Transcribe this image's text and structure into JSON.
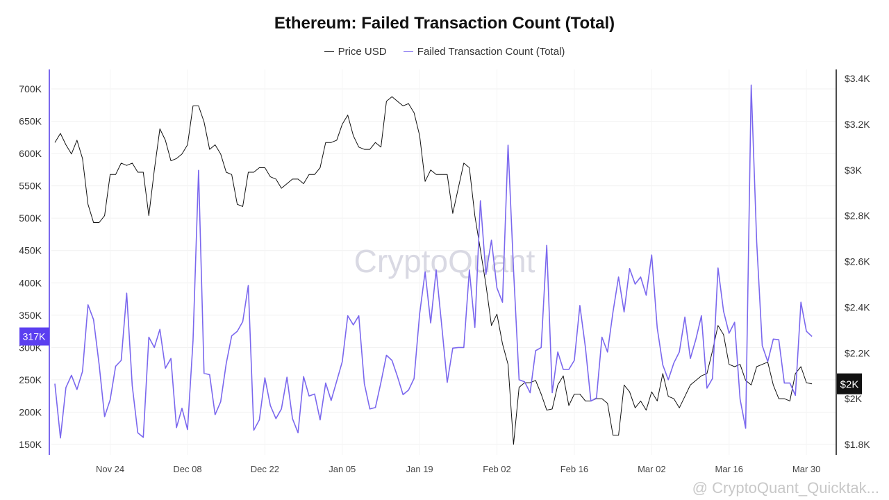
{
  "chart_data": {
    "type": "line",
    "title": "Ethereum: Failed Transaction Count (Total)",
    "legend": {
      "placement": "top-center"
    },
    "watermark": "CryptoQuant",
    "footer": "@ CryptoQuant_Quicktak...",
    "x_ticks": [
      {
        "label": "Nov 24",
        "day": 10
      },
      {
        "label": "Dec 08",
        "day": 24
      },
      {
        "label": "Dec 22",
        "day": 38
      },
      {
        "label": "Jan 05",
        "day": 52
      },
      {
        "label": "Jan 19",
        "day": 66
      },
      {
        "label": "Feb 02",
        "day": 80
      },
      {
        "label": "Feb 16",
        "day": 94
      },
      {
        "label": "Mar 02",
        "day": 108
      },
      {
        "label": "Mar 16",
        "day": 122
      },
      {
        "label": "Mar 30",
        "day": 136
      }
    ],
    "x_range": [
      0,
      139
    ],
    "y_left": {
      "range": [
        135000,
        735000
      ],
      "ticks": [
        {
          "value": 150000,
          "label": "150K"
        },
        {
          "value": 200000,
          "label": "200K"
        },
        {
          "value": 250000,
          "label": "250K"
        },
        {
          "value": 300000,
          "label": "300K"
        },
        {
          "value": 350000,
          "label": "350K"
        },
        {
          "value": 400000,
          "label": "400K"
        },
        {
          "value": 450000,
          "label": "450K"
        },
        {
          "value": 500000,
          "label": "500K"
        },
        {
          "value": 550000,
          "label": "550K"
        },
        {
          "value": 600000,
          "label": "600K"
        },
        {
          "value": 650000,
          "label": "650K"
        },
        {
          "value": 700000,
          "label": "700K"
        }
      ],
      "current_label": "317K",
      "current_value": 317000
    },
    "y_right": {
      "range": [
        1750,
        3450
      ],
      "ticks": [
        {
          "value": 1800,
          "label": "$1.8K"
        },
        {
          "value": 2000,
          "label": "$2K"
        },
        {
          "value": 2200,
          "label": "$2.2K"
        },
        {
          "value": 2400,
          "label": "$2.4K"
        },
        {
          "value": 2600,
          "label": "$2.6K"
        },
        {
          "value": 2800,
          "label": "$2.8K"
        },
        {
          "value": 3000,
          "label": "$3K"
        },
        {
          "value": 3200,
          "label": "$3.2K"
        },
        {
          "value": 3400,
          "label": "$3.4K"
        }
      ],
      "current_label": "$2K",
      "current_value": 2065
    },
    "grid": true,
    "series": [
      {
        "name": "Price USD",
        "axis": "right",
        "color": "#111111",
        "values": [
          3120,
          3160,
          3110,
          3070,
          3130,
          3050,
          2850,
          2770,
          2770,
          2800,
          2980,
          2980,
          3030,
          3020,
          3030,
          2990,
          2990,
          2800,
          3000,
          3180,
          3130,
          3040,
          3050,
          3070,
          3110,
          3280,
          3280,
          3210,
          3090,
          3110,
          3070,
          2990,
          2980,
          2850,
          2840,
          2990,
          2990,
          3010,
          3010,
          2970,
          2960,
          2920,
          2940,
          2960,
          2960,
          2940,
          2980,
          2980,
          3010,
          3120,
          3120,
          3130,
          3200,
          3240,
          3150,
          3100,
          3090,
          3090,
          3120,
          3100,
          3300,
          3320,
          3300,
          3280,
          3290,
          3250,
          3150,
          2950,
          3000,
          2980,
          2980,
          2980,
          2810,
          2920,
          3030,
          3010,
          2800,
          2650,
          2500,
          2320,
          2370,
          2240,
          2150,
          1800,
          2050,
          2070,
          2070,
          2080,
          2020,
          1950,
          1955,
          2060,
          2100,
          1970,
          2020,
          2020,
          1990,
          1990,
          2000,
          2000,
          1980,
          1840,
          1840,
          2060,
          2030,
          1960,
          1990,
          1950,
          2030,
          1990,
          2110,
          2010,
          2000,
          1960,
          2010,
          2060,
          2080,
          2100,
          2110,
          2210,
          2320,
          2280,
          2150,
          2140,
          2150,
          2080,
          2060,
          2140,
          2150,
          2160,
          2060,
          2000,
          2000,
          1990,
          2110,
          2140,
          2070,
          2065
        ]
      },
      {
        "name": "Failed Transaction Count (Total)",
        "axis": "left",
        "color": "#7b68ee",
        "values": [
          244000,
          160000,
          238000,
          257000,
          235000,
          263000,
          366000,
          343000,
          274000,
          193000,
          219000,
          271000,
          280000,
          384000,
          241000,
          168000,
          161000,
          316000,
          300000,
          328000,
          268000,
          283000,
          176000,
          206000,
          173000,
          310000,
          574000,
          260000,
          258000,
          196000,
          216000,
          275000,
          318000,
          325000,
          340000,
          396000,
          172000,
          188000,
          253000,
          210000,
          190000,
          205000,
          254000,
          190000,
          168000,
          255000,
          225000,
          228000,
          188000,
          245000,
          218000,
          248000,
          278000,
          349000,
          335000,
          349000,
          244000,
          205000,
          207000,
          246000,
          288000,
          280000,
          255000,
          227000,
          234000,
          252000,
          352000,
          417000,
          338000,
          420000,
          334000,
          246000,
          299000,
          300000,
          300000,
          420000,
          331000,
          527000,
          413000,
          466000,
          392000,
          370000,
          613000,
          420000,
          250000,
          247000,
          230000,
          295000,
          300000,
          458000,
          230000,
          293000,
          266000,
          266000,
          280000,
          365000,
          300000,
          217000,
          222000,
          316000,
          293000,
          355000,
          409000,
          355000,
          422000,
          398000,
          409000,
          381000,
          443000,
          330000,
          273000,
          250000,
          276000,
          293000,
          347000,
          283000,
          313000,
          349000,
          237000,
          252000,
          423000,
          356000,
          322000,
          339000,
          220000,
          175000,
          706000,
          463000,
          303000,
          278000,
          313000,
          312000,
          245000,
          245000,
          226000,
          370000,
          325000,
          317000
        ]
      }
    ]
  }
}
